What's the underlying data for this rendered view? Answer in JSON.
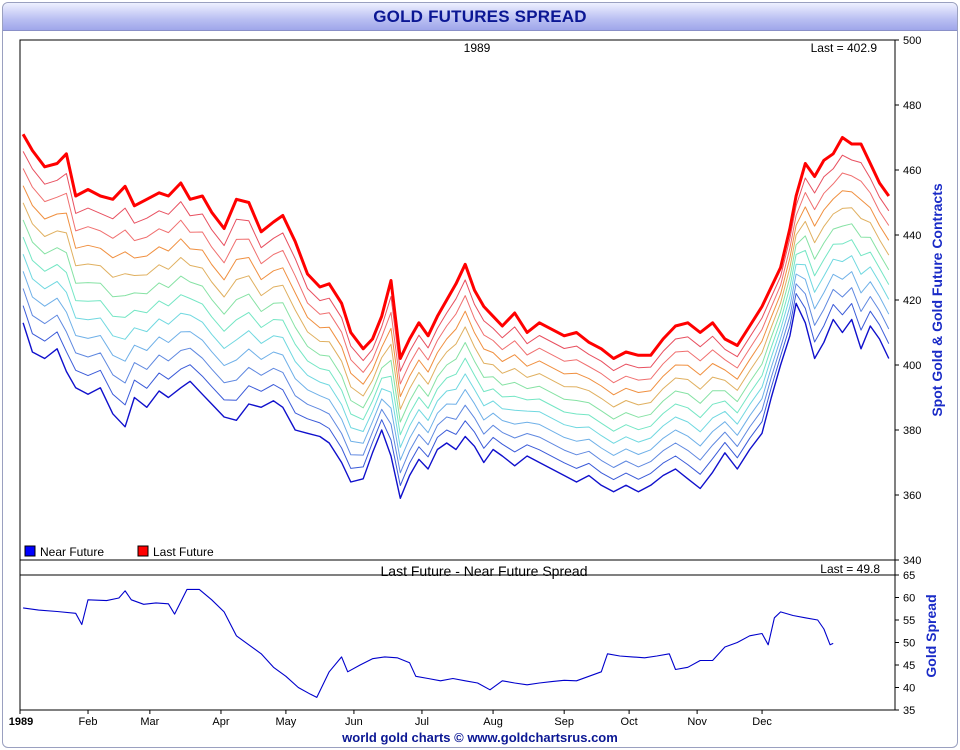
{
  "title": "GOLD FUTURES SPREAD",
  "footer": "world gold charts © www.goldchartsrus.com",
  "chart_data": [
    {
      "type": "line",
      "year_label": "1989",
      "last_label": "Last = 402.9",
      "ylabel": "Spot Gold & Gold Future Contracts",
      "ylim": [
        340,
        500
      ],
      "yticks": [
        340,
        360,
        380,
        400,
        420,
        440,
        460,
        480,
        500
      ],
      "legend": [
        {
          "name": "Near Future",
          "color": "#0000ff"
        },
        {
          "name": "Last Future",
          "color": "#ff0000"
        }
      ],
      "legend_position": "bottom-left",
      "contracts": 12,
      "series_colors": [
        "#1010cc",
        "#3a5ad8",
        "#5f88e0",
        "#6fb0e8",
        "#70d8e0",
        "#74e6c4",
        "#86e2a4",
        "#e0b060",
        "#f09040",
        "#f07070",
        "#e85060",
        "#ff0000"
      ],
      "x_months": [
        "1989",
        "Feb",
        "Mar",
        "Apr",
        "May",
        "Jun",
        "Jul",
        "Aug",
        "Sep",
        "Oct",
        "Nov",
        "Dec"
      ],
      "near_future": [
        [
          1,
          413
        ],
        [
          4,
          404
        ],
        [
          8,
          402
        ],
        [
          12,
          405
        ],
        [
          15,
          398
        ],
        [
          18,
          393
        ],
        [
          22,
          391
        ],
        [
          26,
          393
        ],
        [
          30,
          385
        ],
        [
          34,
          381
        ],
        [
          37,
          390
        ],
        [
          41,
          387
        ],
        [
          45,
          392
        ],
        [
          48,
          390
        ],
        [
          52,
          393
        ],
        [
          55,
          395
        ],
        [
          59,
          391
        ],
        [
          62,
          388
        ],
        [
          66,
          384
        ],
        [
          70,
          383
        ],
        [
          74,
          388
        ],
        [
          78,
          387
        ],
        [
          82,
          389
        ],
        [
          85,
          387
        ],
        [
          89,
          380
        ],
        [
          93,
          379
        ],
        [
          97,
          378
        ],
        [
          100,
          376
        ],
        [
          104,
          370
        ],
        [
          107,
          364
        ],
        [
          111,
          365
        ],
        [
          114,
          373
        ],
        [
          117,
          380
        ],
        [
          120,
          372
        ],
        [
          123,
          359
        ],
        [
          126,
          366
        ],
        [
          129,
          371
        ],
        [
          132,
          368
        ],
        [
          135,
          374
        ],
        [
          138,
          376
        ],
        [
          141,
          374
        ],
        [
          144,
          378
        ],
        [
          147,
          375
        ],
        [
          150,
          370
        ],
        [
          153,
          374
        ],
        [
          156,
          372
        ],
        [
          160,
          369
        ],
        [
          164,
          372
        ],
        [
          168,
          370
        ],
        [
          172,
          368
        ],
        [
          176,
          366
        ],
        [
          180,
          364
        ],
        [
          184,
          366
        ],
        [
          188,
          363
        ],
        [
          192,
          361
        ],
        [
          196,
          363
        ],
        [
          200,
          361
        ],
        [
          204,
          363
        ],
        [
          208,
          366
        ],
        [
          212,
          368
        ],
        [
          216,
          365
        ],
        [
          220,
          362
        ],
        [
          224,
          367
        ],
        [
          228,
          373
        ],
        [
          232,
          368
        ],
        [
          236,
          374
        ],
        [
          240,
          379
        ],
        [
          243,
          390
        ],
        [
          246,
          400
        ],
        [
          249,
          409
        ],
        [
          251,
          419
        ],
        [
          254,
          413
        ],
        [
          257,
          402
        ],
        [
          260,
          407
        ],
        [
          263,
          414
        ],
        [
          266,
          410
        ],
        [
          269,
          414
        ],
        [
          272,
          405
        ],
        [
          275,
          412
        ],
        [
          278,
          408
        ],
        [
          281,
          402
        ]
      ],
      "last_future": [
        [
          1,
          471
        ],
        [
          4,
          466
        ],
        [
          8,
          461
        ],
        [
          12,
          462
        ],
        [
          15,
          465
        ],
        [
          18,
          452
        ],
        [
          22,
          454
        ],
        [
          26,
          452
        ],
        [
          30,
          451
        ],
        [
          34,
          455
        ],
        [
          37,
          449
        ],
        [
          41,
          451
        ],
        [
          45,
          453
        ],
        [
          48,
          452
        ],
        [
          52,
          456
        ],
        [
          55,
          451
        ],
        [
          59,
          452
        ],
        [
          62,
          447
        ],
        [
          66,
          442
        ],
        [
          70,
          451
        ],
        [
          74,
          450
        ],
        [
          78,
          441
        ],
        [
          82,
          444
        ],
        [
          85,
          446
        ],
        [
          89,
          438
        ],
        [
          93,
          428
        ],
        [
          97,
          424
        ],
        [
          100,
          425
        ],
        [
          104,
          419
        ],
        [
          107,
          410
        ],
        [
          111,
          405
        ],
        [
          114,
          408
        ],
        [
          117,
          415
        ],
        [
          120,
          426
        ],
        [
          123,
          402
        ],
        [
          126,
          408
        ],
        [
          129,
          413
        ],
        [
          132,
          409
        ],
        [
          135,
          415
        ],
        [
          138,
          420
        ],
        [
          141,
          425
        ],
        [
          144,
          431
        ],
        [
          147,
          423
        ],
        [
          150,
          418
        ],
        [
          153,
          415
        ],
        [
          156,
          412
        ],
        [
          160,
          416
        ],
        [
          164,
          410
        ],
        [
          168,
          413
        ],
        [
          172,
          411
        ],
        [
          176,
          409
        ],
        [
          180,
          410
        ],
        [
          184,
          407
        ],
        [
          188,
          405
        ],
        [
          192,
          402
        ],
        [
          196,
          404
        ],
        [
          200,
          403
        ],
        [
          204,
          403
        ],
        [
          208,
          408
        ],
        [
          212,
          412
        ],
        [
          216,
          413
        ],
        [
          220,
          410
        ],
        [
          224,
          413
        ],
        [
          228,
          408
        ],
        [
          232,
          406
        ],
        [
          236,
          412
        ],
        [
          240,
          418
        ],
        [
          243,
          424
        ],
        [
          246,
          430
        ],
        [
          249,
          442
        ],
        [
          251,
          452
        ],
        [
          254,
          462
        ],
        [
          257,
          458
        ],
        [
          260,
          463
        ],
        [
          263,
          465
        ],
        [
          266,
          470
        ],
        [
          269,
          468
        ],
        [
          272,
          468
        ],
        [
          275,
          462
        ],
        [
          278,
          456
        ],
        [
          281,
          452
        ]
      ]
    },
    {
      "type": "line",
      "title": "Last Future - Near Future Spread",
      "last_label": "Last = 49.8",
      "ylabel": "Gold Spread",
      "ylim": [
        35,
        65
      ],
      "yticks": [
        35,
        40,
        45,
        50,
        55,
        60,
        65
      ],
      "series": [
        {
          "color": "#0000cc",
          "points": [
            [
              1,
              57.7
            ],
            [
              6,
              57.2
            ],
            [
              12,
              56.9
            ],
            [
              18,
              56.5
            ],
            [
              20,
              54
            ],
            [
              22,
              59.5
            ],
            [
              28,
              59.3
            ],
            [
              32,
              59.9
            ],
            [
              34,
              61.5
            ],
            [
              36,
              59.5
            ],
            [
              40,
              58.5
            ],
            [
              44,
              58.8
            ],
            [
              48,
              58.6
            ],
            [
              50,
              56.3
            ],
            [
              54,
              61.8
            ],
            [
              58,
              61.8
            ],
            [
              62,
              59.5
            ],
            [
              66,
              56.8
            ],
            [
              70,
              51.5
            ],
            [
              74,
              49.5
            ],
            [
              78,
              47.5
            ],
            [
              82,
              44.5
            ],
            [
              86,
              42.5
            ],
            [
              90,
              40
            ],
            [
              94,
              38.5
            ],
            [
              96,
              37.8
            ],
            [
              100,
              43.5
            ],
            [
              104,
              46.8
            ],
            [
              106,
              43.5
            ],
            [
              110,
              45
            ],
            [
              114,
              46.4
            ],
            [
              118,
              46.8
            ],
            [
              122,
              46.6
            ],
            [
              126,
              45.5
            ],
            [
              128,
              42.5
            ],
            [
              132,
              42
            ],
            [
              136,
              41.5
            ],
            [
              140,
              42
            ],
            [
              144,
              41.5
            ],
            [
              148,
              41
            ],
            [
              152,
              39.5
            ],
            [
              156,
              41.5
            ],
            [
              160,
              41
            ],
            [
              164,
              40.6
            ],
            [
              168,
              41
            ],
            [
              172,
              41.3
            ],
            [
              176,
              41.6
            ],
            [
              180,
              41.5
            ],
            [
              184,
              42.5
            ],
            [
              188,
              43.5
            ],
            [
              190,
              47.5
            ],
            [
              194,
              47
            ],
            [
              198,
              46.8
            ],
            [
              202,
              46.6
            ],
            [
              206,
              47
            ],
            [
              210,
              47.5
            ],
            [
              212,
              44
            ],
            [
              216,
              44.5
            ],
            [
              220,
              46
            ],
            [
              224,
              46
            ],
            [
              228,
              49
            ],
            [
              232,
              50
            ],
            [
              236,
              51.5
            ],
            [
              240,
              52
            ],
            [
              242,
              49.5
            ],
            [
              244,
              55.5
            ],
            [
              246,
              56.8
            ],
            [
              250,
              56
            ],
            [
              254,
              55.5
            ],
            [
              258,
              55
            ],
            [
              260,
              53
            ],
            [
              262,
              49.5
            ],
            [
              263,
              49.8
            ]
          ]
        }
      ]
    }
  ]
}
